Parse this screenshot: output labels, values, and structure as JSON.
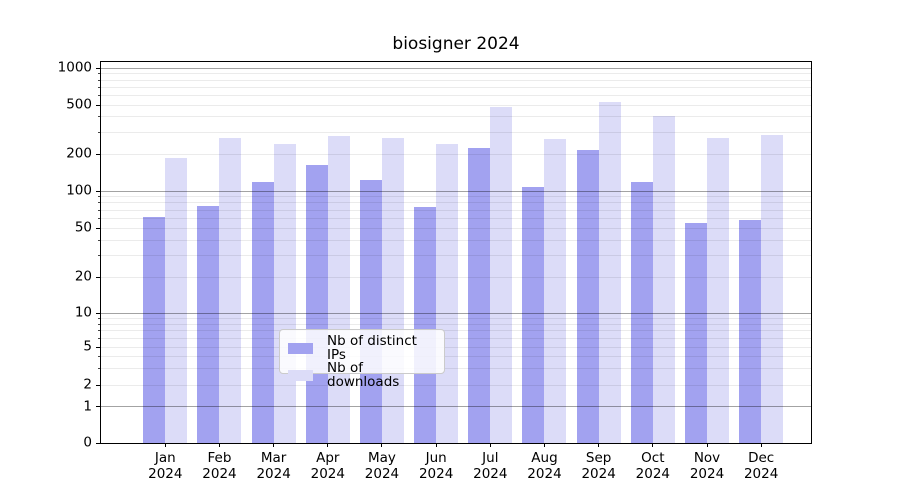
{
  "chart_data": {
    "type": "bar",
    "title": "biosigner 2024",
    "yscale": "symlog (log above 1, linear 0-1)",
    "ylim": [
      0,
      1150
    ],
    "y_ticks": [
      0,
      1,
      2,
      5,
      10,
      20,
      50,
      100,
      200,
      500,
      1000
    ],
    "categories": [
      "Jan",
      "Feb",
      "Mar",
      "Apr",
      "May",
      "Jun",
      "Jul",
      "Aug",
      "Sep",
      "Oct",
      "Nov",
      "Dec"
    ],
    "x_year_line": "2024",
    "grid": "major gridlines at powers of 10, light minor log gridlines",
    "legend_position": "lower center",
    "series": [
      {
        "name": "Nb of distinct IPs",
        "color": "#a2a2f0",
        "values": [
          62,
          75,
          119,
          162,
          124,
          74,
          222,
          108,
          216,
          119,
          55,
          58
        ]
      },
      {
        "name": "Nb of downloads",
        "color": "#dcdcf8",
        "values": [
          186,
          268,
          240,
          281,
          271,
          240,
          485,
          266,
          532,
          407,
          270,
          286
        ]
      }
    ]
  }
}
